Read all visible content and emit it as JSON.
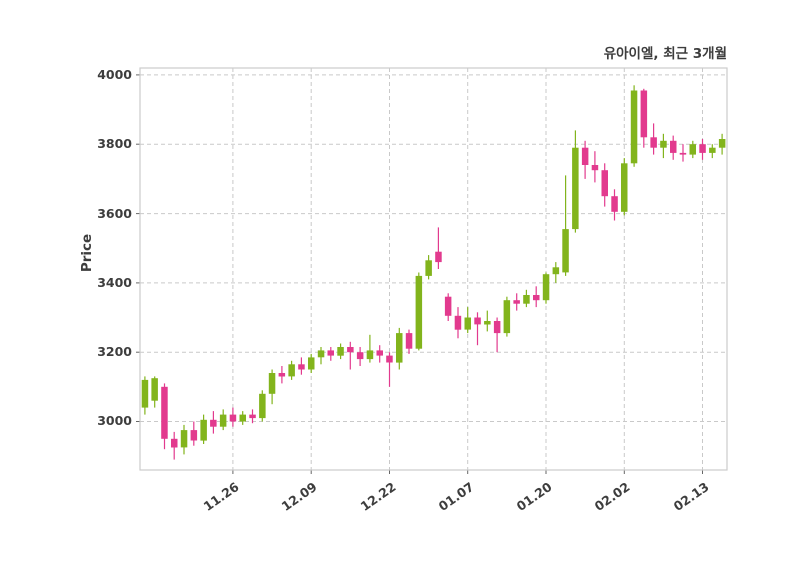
{
  "title": "유아이엘, 최근 3개월",
  "ylabel": "Price",
  "chart_data": {
    "type": "candlestick",
    "title": "유아이엘, 최근 3개월",
    "xlabel": "",
    "ylabel": "Price",
    "grid": true,
    "grid_style": "dashed",
    "up_color": "#82b41c",
    "down_color": "#e23a8e",
    "grid_color": "#c9c9c9",
    "border_color": "#cccccc",
    "text_color": "#3d3d3d",
    "ylim": [
      2860,
      4020
    ],
    "y_ticks": [
      3000,
      3200,
      3400,
      3600,
      3800,
      4000
    ],
    "x_ticks": [
      {
        "label": "11.26",
        "index": 9
      },
      {
        "label": "12.09",
        "index": 17
      },
      {
        "label": "12.22",
        "index": 25
      },
      {
        "label": "01.07",
        "index": 33
      },
      {
        "label": "01.20",
        "index": 41
      },
      {
        "label": "02.02",
        "index": 49
      },
      {
        "label": "02.13",
        "index": 57
      }
    ],
    "ohlc_order": [
      "open",
      "high",
      "low",
      "close"
    ],
    "candles": [
      [
        3040,
        3130,
        3020,
        3120
      ],
      [
        3060,
        3130,
        3040,
        3125
      ],
      [
        3100,
        3110,
        2920,
        2950
      ],
      [
        2950,
        2970,
        2890,
        2925
      ],
      [
        2925,
        2990,
        2905,
        2975
      ],
      [
        2975,
        3000,
        2930,
        2945
      ],
      [
        2945,
        3020,
        2935,
        3005
      ],
      [
        3005,
        3030,
        2965,
        2985
      ],
      [
        2985,
        3035,
        2975,
        3020
      ],
      [
        3020,
        3040,
        2985,
        3000
      ],
      [
        3000,
        3030,
        2990,
        3020
      ],
      [
        3020,
        3035,
        2995,
        3010
      ],
      [
        3010,
        3090,
        3000,
        3080
      ],
      [
        3080,
        3150,
        3050,
        3140
      ],
      [
        3140,
        3160,
        3110,
        3130
      ],
      [
        3130,
        3175,
        3120,
        3165
      ],
      [
        3165,
        3185,
        3135,
        3150
      ],
      [
        3150,
        3195,
        3140,
        3185
      ],
      [
        3185,
        3215,
        3165,
        3205
      ],
      [
        3205,
        3215,
        3175,
        3190
      ],
      [
        3190,
        3225,
        3180,
        3215
      ],
      [
        3215,
        3230,
        3150,
        3200
      ],
      [
        3200,
        3215,
        3160,
        3180
      ],
      [
        3180,
        3250,
        3170,
        3205
      ],
      [
        3205,
        3220,
        3170,
        3190
      ],
      [
        3190,
        3200,
        3100,
        3170
      ],
      [
        3170,
        3270,
        3150,
        3255
      ],
      [
        3255,
        3265,
        3195,
        3210
      ],
      [
        3210,
        3430,
        3205,
        3420
      ],
      [
        3420,
        3480,
        3410,
        3465
      ],
      [
        3490,
        3560,
        3440,
        3460
      ],
      [
        3360,
        3370,
        3290,
        3305
      ],
      [
        3305,
        3330,
        3240,
        3265
      ],
      [
        3265,
        3330,
        3255,
        3300
      ],
      [
        3300,
        3315,
        3220,
        3280
      ],
      [
        3280,
        3320,
        3260,
        3290
      ],
      [
        3290,
        3300,
        3200,
        3255
      ],
      [
        3255,
        3360,
        3245,
        3350
      ],
      [
        3350,
        3370,
        3320,
        3340
      ],
      [
        3340,
        3380,
        3330,
        3365
      ],
      [
        3365,
        3390,
        3330,
        3350
      ],
      [
        3350,
        3430,
        3340,
        3425
      ],
      [
        3425,
        3460,
        3400,
        3445
      ],
      [
        3430,
        3710,
        3420,
        3555
      ],
      [
        3555,
        3840,
        3545,
        3790
      ],
      [
        3790,
        3810,
        3700,
        3740
      ],
      [
        3740,
        3780,
        3690,
        3725
      ],
      [
        3725,
        3745,
        3620,
        3650
      ],
      [
        3650,
        3670,
        3580,
        3605
      ],
      [
        3605,
        3760,
        3595,
        3745
      ],
      [
        3745,
        3970,
        3735,
        3955
      ],
      [
        3955,
        3960,
        3790,
        3820
      ],
      [
        3820,
        3860,
        3770,
        3790
      ],
      [
        3790,
        3830,
        3760,
        3810
      ],
      [
        3810,
        3825,
        3755,
        3775
      ],
      [
        3775,
        3800,
        3750,
        3770
      ],
      [
        3770,
        3810,
        3760,
        3800
      ],
      [
        3800,
        3815,
        3755,
        3775
      ],
      [
        3775,
        3800,
        3760,
        3790
      ],
      [
        3790,
        3830,
        3770,
        3815
      ]
    ]
  }
}
